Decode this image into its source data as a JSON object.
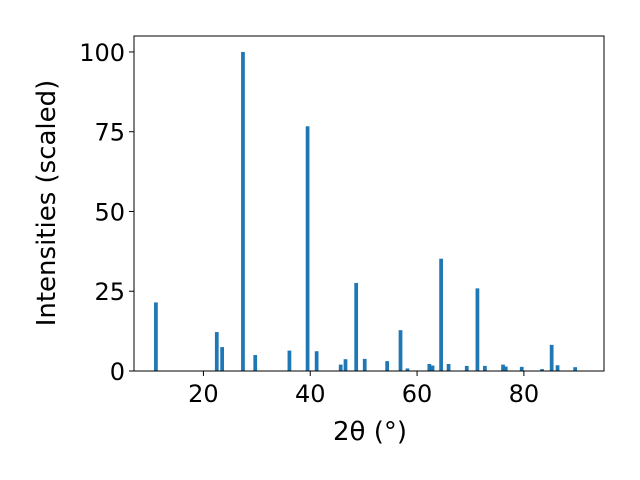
{
  "chart_data": {
    "type": "bar",
    "title": "",
    "xlabel": "2θ (°)",
    "ylabel": "Intensities (scaled)",
    "xlim": [
      7,
      95
    ],
    "ylim": [
      0,
      105
    ],
    "xticks": [
      20,
      40,
      60,
      80
    ],
    "yticks": [
      0,
      25,
      50,
      75,
      100
    ],
    "grid": false,
    "bar_color": "#1f77b4",
    "bar_width": 0.7,
    "series": [
      {
        "x": [
          11.1,
          22.5,
          23.5,
          27.4,
          29.7,
          36.1,
          39.5,
          41.2,
          45.7,
          46.6,
          48.6,
          50.2,
          54.4,
          56.9,
          58.2,
          62.3,
          62.9,
          64.5,
          65.9,
          69.3,
          71.3,
          72.7,
          76.1,
          76.6,
          79.6,
          83.4,
          85.2,
          86.3,
          89.6
        ],
        "values": [
          21.5,
          12.2,
          7.5,
          100,
          5.0,
          6.4,
          76.7,
          6.2,
          2.0,
          3.7,
          27.6,
          3.8,
          3.1,
          12.8,
          0.8,
          2.2,
          1.7,
          35.2,
          2.2,
          1.6,
          25.9,
          1.6,
          2.0,
          1.4,
          1.3,
          0.6,
          8.2,
          1.8,
          1.2
        ]
      }
    ]
  }
}
